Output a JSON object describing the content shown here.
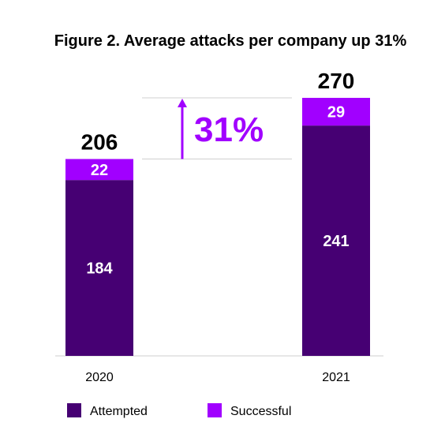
{
  "chart_data": {
    "type": "bar",
    "stacked": true,
    "title": "Figure 2. Average attacks per company up 31%",
    "categories": [
      "2020",
      "2021"
    ],
    "series": [
      {
        "name": "Attempted",
        "values": [
          184,
          241
        ],
        "color": "#460073"
      },
      {
        "name": "Successful",
        "values": [
          22,
          29
        ],
        "color": "#a100ff"
      }
    ],
    "totals": [
      206,
      270
    ],
    "ylim": [
      0,
      270
    ],
    "annotation": {
      "text": "31%",
      "color": "#a100ff",
      "icon": "arrow-up-icon"
    },
    "legend_position": "bottom-left",
    "grid": false
  }
}
